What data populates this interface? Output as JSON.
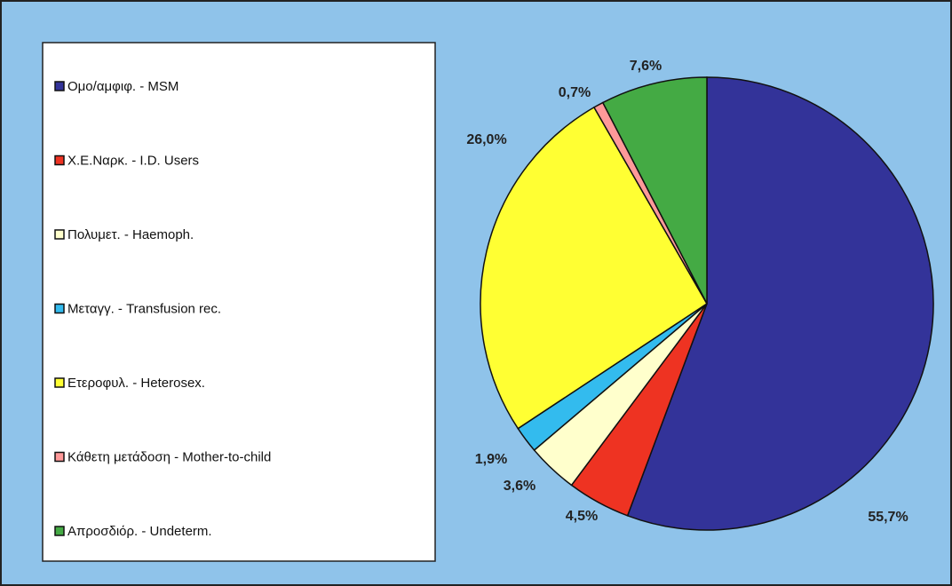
{
  "chart_data": {
    "type": "pie",
    "categories": [
      "Ομο/αμφιφ. - MSM",
      "Χ.Ε.Ναρκ. - I.D. Users",
      "Πολυμετ. - Haemoph.",
      "Μεταγγ. - Transfusion rec.",
      "Ετεροφυλ. - Heterosex.",
      "Κάθετη μετάδοση - Mother-to-child",
      "Απροσδιόρ. - Undeterm."
    ],
    "values": [
      55.7,
      4.5,
      3.6,
      1.9,
      26.0,
      0.7,
      7.6
    ],
    "value_labels": [
      "55,7%",
      "4,5%",
      "3,6%",
      "1,9%",
      "26,0%",
      "0,7%",
      "7,6%"
    ],
    "colors": [
      "#333399",
      "#ee3322",
      "#ffffcc",
      "#33bbee",
      "#ffff33",
      "#ff9999",
      "#44aa44"
    ],
    "legend": "left"
  }
}
